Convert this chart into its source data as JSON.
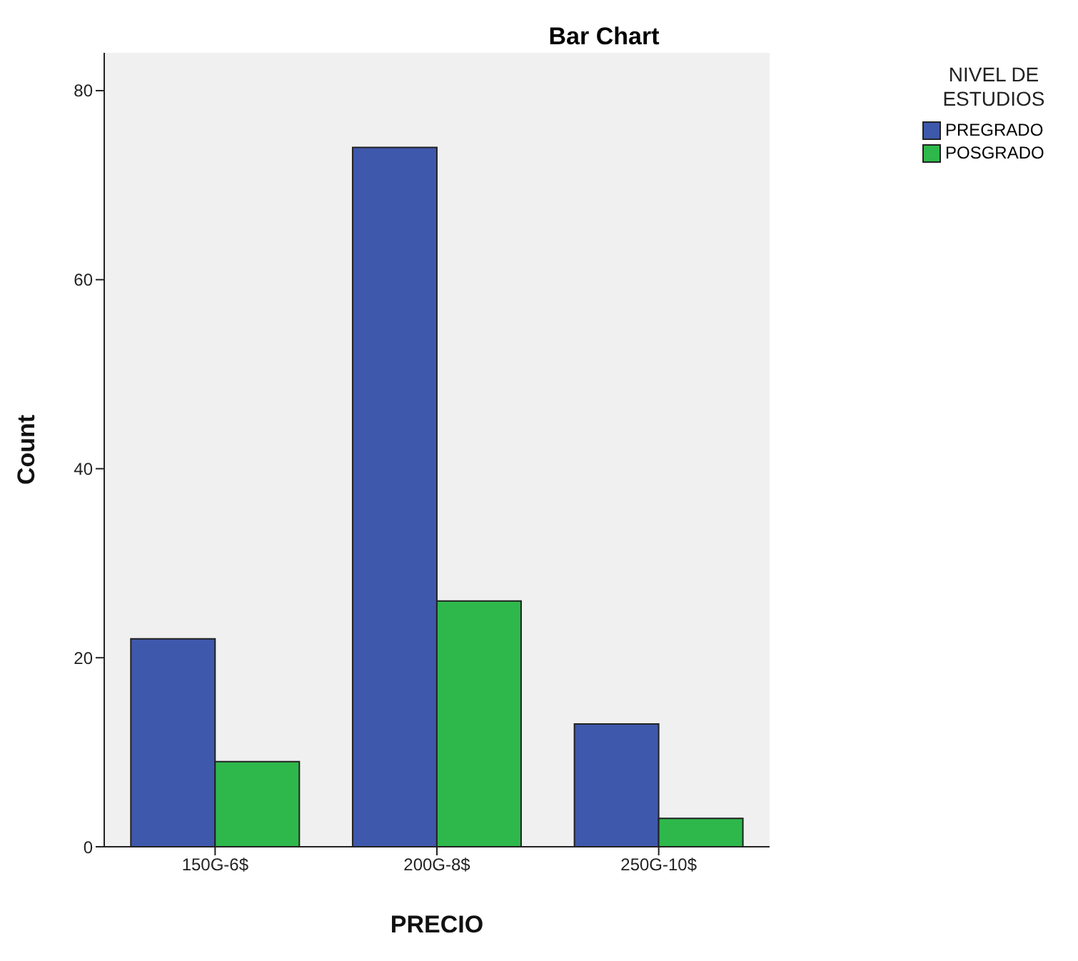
{
  "chart_data": {
    "type": "bar",
    "title": "Bar Chart",
    "xlabel": "PRECIO",
    "ylabel": "Count",
    "legend_title": "NIVEL DE ESTUDIOS",
    "categories": [
      "150G-6$",
      "200G-8$",
      "250G-10$"
    ],
    "series": [
      {
        "name": "PREGRADO",
        "color": "#3e58ac",
        "values": [
          22,
          74,
          13
        ]
      },
      {
        "name": "POSGRADO",
        "color": "#2eb84b",
        "values": [
          9,
          26,
          3
        ]
      }
    ],
    "ylim": [
      0,
      84
    ],
    "yticks": [
      0,
      20,
      40,
      60,
      80
    ],
    "grid": false,
    "legend": "top right"
  }
}
